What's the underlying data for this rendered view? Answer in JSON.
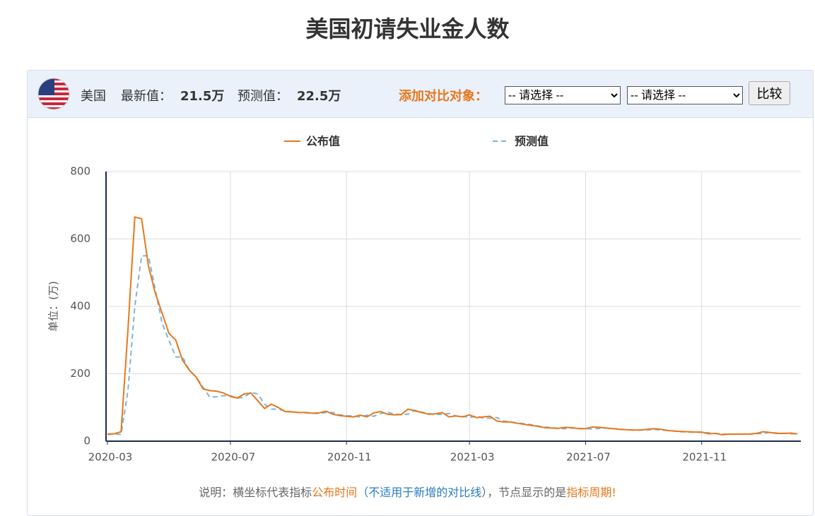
{
  "title": "美国初请失业金人数",
  "header": {
    "country": "美国",
    "latest_label": "最新值：",
    "latest_value": "21.5万",
    "forecast_label": "预测值：",
    "forecast_value": "22.5万",
    "compare_label": "添加对比对象：",
    "select_1": "-- 请选择 --",
    "select_2": "-- 请选择 --",
    "button": "比较"
  },
  "note": [
    "说明：横坐标代表指标",
    "公布时间",
    "（不适用于新增的对比线",
    "），节点显示的是",
    "指标周期!"
  ],
  "chart_data": {
    "type": "line",
    "y_label": "单位：(万)",
    "grid": true,
    "ylim": [
      0,
      800
    ],
    "yticks": [
      0,
      200,
      400,
      600,
      800
    ],
    "categories": [
      "2020-03",
      null,
      null,
      null,
      null,
      null,
      null,
      null,
      null,
      null,
      null,
      null,
      null,
      null,
      null,
      null,
      null,
      null,
      "2020-07",
      null,
      null,
      null,
      null,
      null,
      null,
      null,
      null,
      null,
      null,
      null,
      null,
      null,
      null,
      null,
      null,
      "2020-11",
      null,
      null,
      null,
      null,
      null,
      null,
      null,
      null,
      null,
      null,
      null,
      null,
      null,
      null,
      null,
      null,
      null,
      "2021-03",
      null,
      null,
      null,
      null,
      null,
      null,
      null,
      null,
      null,
      null,
      null,
      null,
      null,
      null,
      null,
      null,
      "2021-07",
      null,
      null,
      null,
      null,
      null,
      null,
      null,
      null,
      null,
      null,
      null,
      null,
      null,
      null,
      null,
      null,
      "2021-11",
      null,
      null,
      null,
      null,
      null,
      null,
      null,
      null,
      null,
      null,
      null,
      null,
      null,
      null
    ],
    "series": [
      {
        "name": "公布值",
        "color": "#e8771a",
        "dash": false,
        "values": [
          21.1,
          21.7,
          28,
          330,
          665,
          660,
          520,
          440,
          380,
          320,
          300,
          240,
          210,
          190,
          155,
          150,
          148,
          143,
          133,
          128,
          140,
          143,
          120,
          97,
          110,
          100,
          88,
          87,
          85,
          85,
          83,
          84,
          89,
          80,
          76,
          74,
          72,
          77,
          72,
          84,
          88,
          80,
          78,
          79,
          95,
          90,
          85,
          80,
          81,
          85,
          72,
          75,
          72,
          78,
          70,
          72,
          74,
          60,
          57,
          57,
          53,
          50,
          47,
          44,
          40,
          39,
          38,
          41,
          40,
          37,
          37,
          42,
          41,
          39,
          37,
          35,
          34,
          33,
          33,
          35,
          37,
          35,
          32,
          30,
          29,
          28,
          27,
          27,
          22,
          23,
          19,
          21,
          21,
          21,
          21,
          23,
          28,
          26,
          23,
          23,
          24,
          21.5
        ]
      },
      {
        "name": "预测值",
        "color": "#7ab4e0",
        "dash": true,
        "values": [
          20,
          21,
          20,
          150,
          400,
          550,
          550,
          450,
          350,
          300,
          250,
          250,
          210,
          190,
          160,
          130,
          132,
          135,
          135,
          128,
          130,
          145,
          140,
          110,
          95,
          95,
          90,
          87,
          85,
          84,
          83,
          82,
          85,
          85,
          78,
          76,
          74,
          72,
          77,
          74,
          82,
          86,
          80,
          79,
          80,
          92,
          86,
          82,
          79,
          80,
          82,
          75,
          74,
          70,
          75,
          68,
          68,
          70,
          60,
          57,
          54,
          52,
          49,
          45,
          42,
          40,
          38,
          37,
          39,
          38,
          37,
          36,
          38,
          39,
          37,
          36,
          34,
          33,
          33,
          33,
          35,
          33,
          32,
          30,
          28,
          27,
          27,
          26,
          25,
          23,
          21,
          21,
          21,
          21,
          21,
          22,
          23,
          26,
          24,
          23,
          22,
          22.5
        ]
      }
    ]
  }
}
